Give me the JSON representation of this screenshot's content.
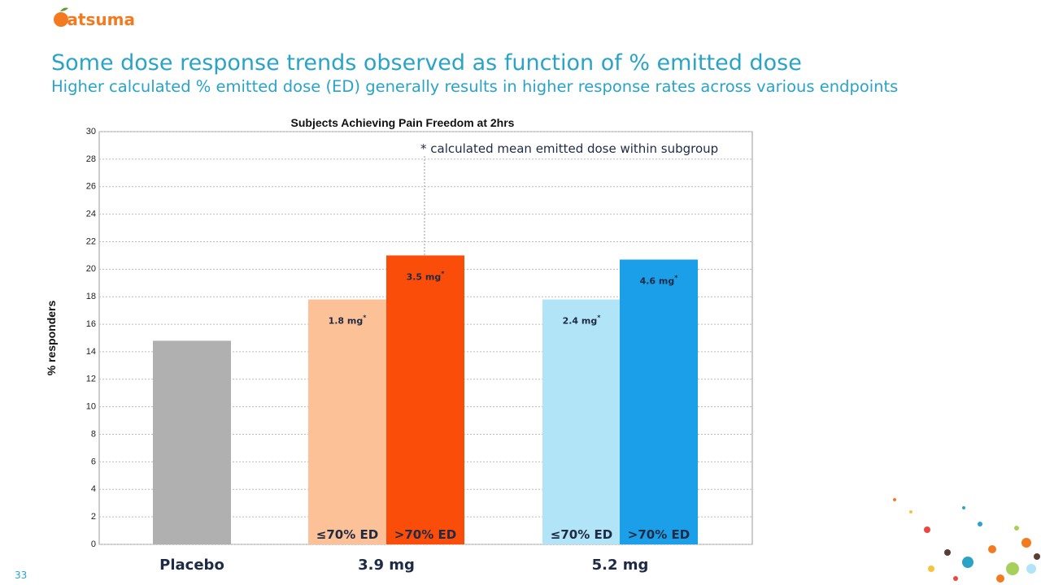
{
  "logo": "Satsuma",
  "page_number": "33",
  "header": {
    "title": "Some dose response trends observed as function of % emitted dose",
    "subtitle": "Higher calculated % emitted dose (ED) generally results in higher response rates across various endpoints"
  },
  "chart_data": {
    "type": "bar",
    "title": "Subjects Achieving Pain Freedom at 2hrs",
    "y_label": "% responders",
    "note": "* calculated mean emitted dose within subgroup",
    "groups": [
      "Placebo",
      "3.9 mg",
      "5.2 mg"
    ],
    "categories": [
      null,
      "≤70% ED",
      ">70% ED",
      "≤70% ED",
      ">70% ED"
    ],
    "values": [
      14.8,
      17.8,
      21.0,
      17.8,
      20.7
    ],
    "colors": [
      "#b0b0b0",
      "#fdc197",
      "#fb4d0a",
      "#b1e4f7",
      "#1a9fe8"
    ],
    "bar_annotations": [
      null,
      {
        "text": "1.8 mg",
        "sup": "*"
      },
      {
        "text": "3.5 mg",
        "sup": "*"
      },
      {
        "text": "2.4 mg",
        "sup": "*"
      },
      {
        "text": "4.6 mg",
        "sup": "*"
      }
    ],
    "ylim": [
      0,
      30
    ],
    "yticks": [
      0,
      2,
      4,
      6,
      8,
      10,
      12,
      14,
      16,
      18,
      20,
      22,
      24,
      26,
      28,
      30
    ],
    "grid": true
  }
}
